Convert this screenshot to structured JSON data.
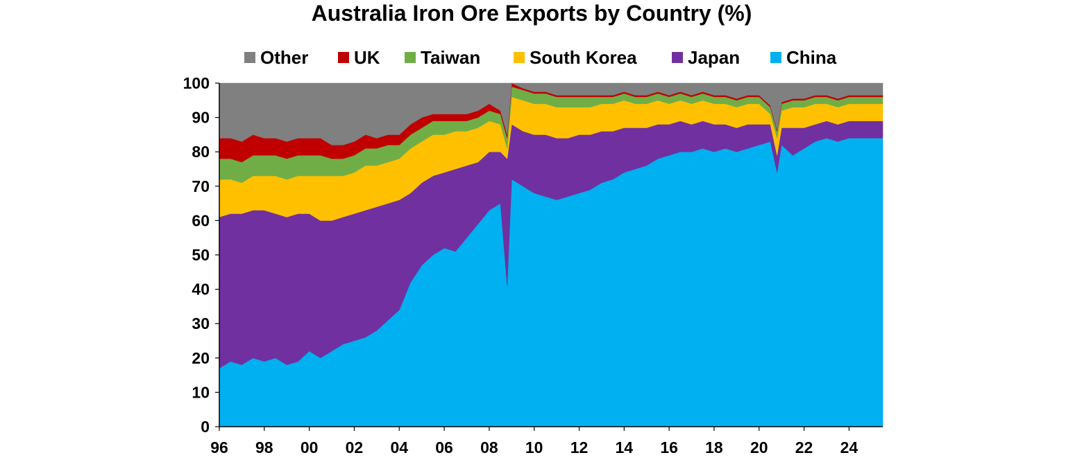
{
  "chart_data": {
    "type": "area",
    "stacked": true,
    "title": "Australia Iron Ore Exports by Country (%)",
    "xlabel": "",
    "ylabel": "",
    "x_range": [
      1996.0,
      2025.5
    ],
    "ylim": [
      0,
      100
    ],
    "y_ticks": [
      "0",
      "10",
      "20",
      "30",
      "40",
      "50",
      "60",
      "70",
      "80",
      "90",
      "100"
    ],
    "x_tick_labels": [
      "96",
      "98",
      "00",
      "02",
      "04",
      "06",
      "08",
      "10",
      "12",
      "14",
      "16",
      "18",
      "20",
      "22",
      "24"
    ],
    "legend": {
      "position": "top",
      "order": [
        "Other",
        "UK",
        "Taiwan",
        "South Korea",
        "Japan",
        "China"
      ]
    },
    "grid": false,
    "x": [
      1996,
      1996.5,
      1997,
      1997.5,
      1998,
      1998.5,
      1999,
      1999.5,
      2000,
      2000.5,
      2001,
      2001.5,
      2002,
      2002.5,
      2003,
      2003.5,
      2004,
      2004.5,
      2005,
      2005.5,
      2006,
      2006.5,
      2007,
      2007.5,
      2008,
      2008.5,
      2008.8,
      2009,
      2009.5,
      2010,
      2010.5,
      2011,
      2011.5,
      2012,
      2012.5,
      2013,
      2013.5,
      2014,
      2014.5,
      2015,
      2015.5,
      2016,
      2016.5,
      2017,
      2017.5,
      2018,
      2018.5,
      2019,
      2019.5,
      2020,
      2020.5,
      2020.8,
      2021,
      2021.5,
      2022,
      2022.5,
      2023,
      2023.5,
      2024,
      2024.5,
      2025,
      2025.5
    ],
    "series": [
      {
        "name": "China",
        "color": "#00B0F0",
        "values": [
          17,
          19,
          18,
          20,
          19,
          20,
          18,
          19,
          22,
          20,
          22,
          24,
          25,
          26,
          28,
          31,
          34,
          42,
          47,
          50,
          52,
          51,
          55,
          59,
          63,
          65,
          41,
          72,
          70,
          68,
          67,
          66,
          67,
          68,
          69,
          71,
          72,
          74,
          75,
          76,
          78,
          79,
          80,
          80,
          81,
          80,
          81,
          80,
          81,
          82,
          83,
          74,
          82,
          79,
          81,
          83,
          84,
          83,
          84,
          84,
          84,
          84
        ]
      },
      {
        "name": "Japan",
        "color": "#7030A0",
        "values": [
          44,
          43,
          44,
          43,
          44,
          42,
          43,
          43,
          40,
          40,
          38,
          37,
          37,
          37,
          36,
          34,
          32,
          26,
          24,
          23,
          22,
          24,
          21,
          18,
          17,
          15,
          37,
          16,
          16,
          17,
          18,
          18,
          17,
          17,
          16,
          15,
          14,
          13,
          12,
          11,
          10,
          9,
          9,
          8,
          8,
          8,
          7,
          7,
          7,
          6,
          5,
          5,
          5,
          8,
          6,
          5,
          5,
          5,
          5,
          5,
          5,
          5
        ]
      },
      {
        "name": "South Korea",
        "color": "#FFC000",
        "values": [
          11,
          10,
          9,
          10,
          10,
          11,
          11,
          11,
          11,
          13,
          13,
          12,
          12,
          13,
          12,
          12,
          12,
          13,
          12,
          12,
          11,
          11,
          10,
          10,
          9,
          8,
          3,
          8,
          9,
          9,
          9,
          9,
          9,
          8,
          8,
          8,
          8,
          8,
          7,
          7,
          7,
          6,
          6,
          6,
          6,
          6,
          6,
          6,
          6,
          6,
          3,
          5,
          5,
          6,
          6,
          6,
          5,
          5,
          5,
          5,
          5,
          5
        ]
      },
      {
        "name": "Taiwan",
        "color": "#70AD47",
        "values": [
          6,
          6,
          6,
          6,
          6,
          6,
          6,
          6,
          6,
          6,
          5,
          5,
          5,
          5,
          5,
          5,
          4,
          4,
          4,
          4,
          4,
          3,
          3,
          3,
          3,
          3,
          3,
          3,
          3,
          3,
          3,
          3,
          3,
          3,
          3,
          2,
          2,
          2,
          2,
          2,
          2,
          2,
          2,
          2,
          2,
          2,
          2,
          2,
          2,
          2,
          2,
          2,
          2,
          2,
          2,
          2,
          2,
          2,
          2,
          2,
          2,
          2
        ]
      },
      {
        "name": "UK",
        "color": "#C00000",
        "values": [
          6,
          6,
          6,
          6,
          5,
          5,
          5,
          5,
          5,
          5,
          4,
          4,
          4,
          4,
          3,
          3,
          3,
          3,
          3,
          2,
          2,
          2,
          2,
          2,
          2,
          1,
          1,
          1,
          0.5,
          0.5,
          0.5,
          0.5,
          0.5,
          0.5,
          0.5,
          0.5,
          0.5,
          0.5,
          0.5,
          0.5,
          0.5,
          0.5,
          0.5,
          0.5,
          0.5,
          0.5,
          0.5,
          0.5,
          0.5,
          0.5,
          0.5,
          0.5,
          0.5,
          0.5,
          0.5,
          0.5,
          0.5,
          0.5,
          0.5,
          0.5,
          0.5,
          0.5
        ]
      },
      {
        "name": "Other",
        "color": "#808080",
        "values": [
          16,
          16,
          17,
          15,
          16,
          16,
          17,
          16,
          16,
          16,
          18,
          18,
          17,
          15,
          16,
          15,
          15,
          12,
          10,
          9,
          9,
          9,
          9,
          8,
          6,
          8,
          15,
          0,
          1.5,
          2.5,
          2.5,
          3.5,
          3.5,
          3.5,
          3.5,
          3.5,
          3.5,
          2.5,
          3.5,
          3.5,
          2.5,
          3.5,
          2.5,
          3.5,
          2.5,
          3.5,
          3.5,
          4.5,
          3.5,
          3.5,
          6.5,
          13.5,
          5.5,
          4.5,
          4.5,
          3.5,
          3.5,
          4.5,
          3.5,
          3.5,
          3.5,
          3.5
        ]
      }
    ]
  }
}
